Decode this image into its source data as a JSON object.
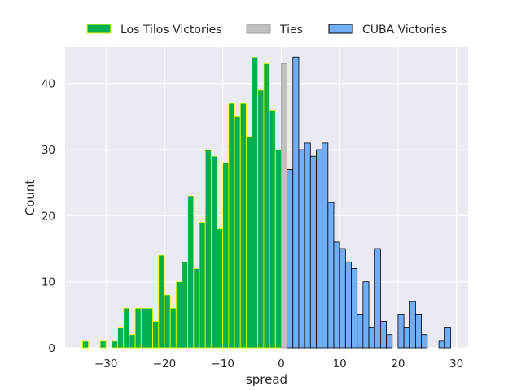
{
  "chart_data": {
    "type": "bar",
    "xlabel": "spread",
    "ylabel": "Count",
    "xlim": [
      -37,
      32
    ],
    "ylim": [
      0,
      45.5
    ],
    "x_ticks": [
      -30,
      -20,
      -10,
      0,
      10,
      20,
      30
    ],
    "y_ticks": [
      0,
      10,
      20,
      30,
      40
    ],
    "x_tick_labels": [
      "−30",
      "−20",
      "−10",
      "0",
      "10",
      "20",
      "30"
    ],
    "y_tick_labels": [
      "0",
      "10",
      "20",
      "30",
      "40"
    ],
    "grid": true,
    "legend_placement": "top-center",
    "background": "#eaeaf2",
    "series": [
      {
        "name": "Los Tilos Victories",
        "color": "#00b050",
        "edge_color": "#ffff00",
        "bins": [
          [
            -34,
            1
          ],
          [
            -31,
            1
          ],
          [
            -29,
            1
          ],
          [
            -28,
            3
          ],
          [
            -27,
            6
          ],
          [
            -26,
            2
          ],
          [
            -25,
            6
          ],
          [
            -24,
            6
          ],
          [
            -23,
            6
          ],
          [
            -22,
            4
          ],
          [
            -21,
            14
          ],
          [
            -20,
            8
          ],
          [
            -19,
            6
          ],
          [
            -18,
            10
          ],
          [
            -17,
            13
          ],
          [
            -16,
            23
          ],
          [
            -15,
            12
          ],
          [
            -14,
            19
          ],
          [
            -13,
            30
          ],
          [
            -12,
            29
          ],
          [
            -11,
            18
          ],
          [
            -10,
            28
          ],
          [
            -9,
            37
          ],
          [
            -8,
            35
          ],
          [
            -7,
            37
          ],
          [
            -6,
            32
          ],
          [
            -5,
            44
          ],
          [
            -4,
            39
          ],
          [
            -3,
            43
          ],
          [
            -2,
            36
          ],
          [
            -1,
            30
          ]
        ]
      },
      {
        "name": "Ties",
        "color": "#c0c0c0",
        "edge_color": "#a0a0a0",
        "bins": [
          [
            0,
            43
          ]
        ]
      },
      {
        "name": "CUBA Victories",
        "color": "#72aef5",
        "edge_color": "#000000",
        "bins": [
          [
            1,
            27
          ],
          [
            2,
            44
          ],
          [
            3,
            30
          ],
          [
            4,
            31
          ],
          [
            5,
            29
          ],
          [
            6,
            30
          ],
          [
            7,
            31
          ],
          [
            8,
            22
          ],
          [
            9,
            16
          ],
          [
            10,
            15
          ],
          [
            11,
            13
          ],
          [
            12,
            12
          ],
          [
            13,
            5
          ],
          [
            14,
            10
          ],
          [
            15,
            3
          ],
          [
            16,
            15
          ],
          [
            17,
            4
          ],
          [
            18,
            2
          ],
          [
            20,
            5
          ],
          [
            21,
            3
          ],
          [
            22,
            7
          ],
          [
            23,
            5
          ],
          [
            24,
            2
          ],
          [
            27,
            1
          ],
          [
            28,
            3
          ]
        ]
      }
    ]
  }
}
